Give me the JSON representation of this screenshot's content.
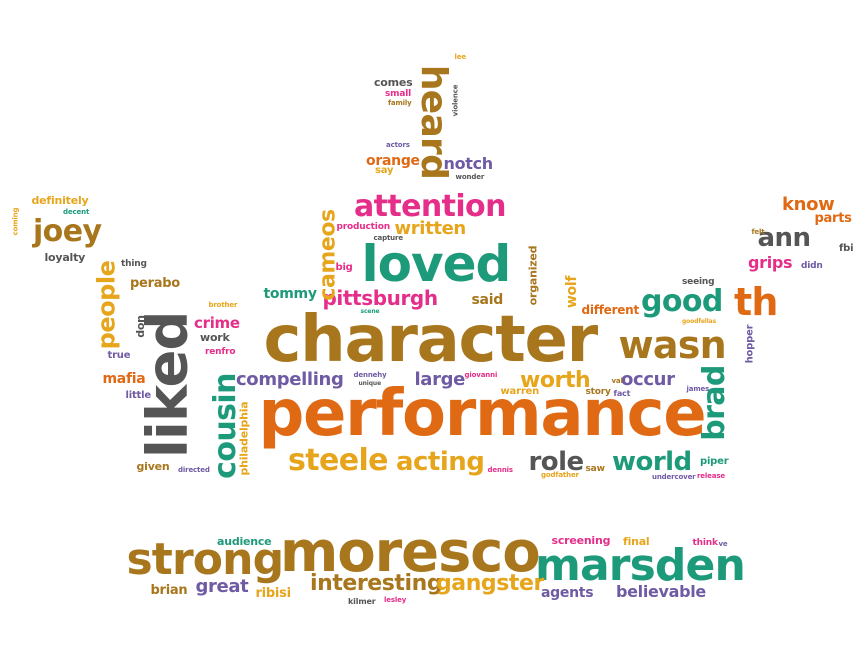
{
  "palette": {
    "green": "#1d9a7a",
    "orange": "#e06914",
    "brown": "#a8761c",
    "magenta": "#e52e8a",
    "gray": "#555555",
    "yellow": "#e7a51c",
    "purple": "#6f5aa4"
  },
  "words": [
    {
      "text": "character",
      "color": "brown"
    },
    {
      "text": "performance",
      "color": "orange"
    },
    {
      "text": "moresco",
      "color": "brown"
    },
    {
      "text": "marsden",
      "color": "green"
    },
    {
      "text": "strong",
      "color": "brown"
    },
    {
      "text": "liked",
      "color": "gray"
    },
    {
      "text": "loved",
      "color": "green"
    },
    {
      "text": "attention",
      "color": "magenta"
    },
    {
      "text": "wasn",
      "color": "brown"
    },
    {
      "text": "heard",
      "color": "brown"
    },
    {
      "text": "steele",
      "color": "yellow"
    },
    {
      "text": "acting",
      "color": "yellow"
    },
    {
      "text": "cousin",
      "color": "green"
    },
    {
      "text": "brad",
      "color": "green"
    },
    {
      "text": "good",
      "color": "green"
    },
    {
      "text": "th",
      "color": "orange"
    },
    {
      "text": "world",
      "color": "green"
    },
    {
      "text": "role",
      "color": "gray"
    },
    {
      "text": "worth",
      "color": "yellow"
    },
    {
      "text": "interesting",
      "color": "brown"
    },
    {
      "text": "gangster",
      "color": "yellow"
    },
    {
      "text": "joey",
      "color": "brown"
    },
    {
      "text": "people",
      "color": "yellow"
    },
    {
      "text": "pittsburgh",
      "color": "magenta"
    },
    {
      "text": "written",
      "color": "yellow"
    },
    {
      "text": "cameos",
      "color": "yellow"
    },
    {
      "text": "ann",
      "color": "gray"
    },
    {
      "text": "know",
      "color": "orange"
    },
    {
      "text": "great",
      "color": "purple"
    },
    {
      "text": "compelling",
      "color": "purple"
    },
    {
      "text": "large",
      "color": "purple"
    },
    {
      "text": "occur",
      "color": "purple"
    },
    {
      "text": "believable",
      "color": "purple"
    },
    {
      "text": "agents",
      "color": "purple"
    },
    {
      "text": "ribisi",
      "color": "yellow"
    },
    {
      "text": "brian",
      "color": "brown"
    },
    {
      "text": "audience",
      "color": "green"
    },
    {
      "text": "screening",
      "color": "magenta"
    },
    {
      "text": "final",
      "color": "yellow"
    },
    {
      "text": "grips",
      "color": "magenta"
    },
    {
      "text": "parts",
      "color": "orange"
    },
    {
      "text": "notch",
      "color": "purple"
    },
    {
      "text": "orange",
      "color": "orange"
    },
    {
      "text": "mafia",
      "color": "orange"
    },
    {
      "text": "crime",
      "color": "magenta"
    },
    {
      "text": "tommy",
      "color": "green"
    },
    {
      "text": "said",
      "color": "brown"
    },
    {
      "text": "wolf",
      "color": "yellow"
    },
    {
      "text": "organized",
      "color": "brown"
    },
    {
      "text": "different",
      "color": "orange"
    },
    {
      "text": "perabo",
      "color": "brown"
    },
    {
      "text": "philadelphia",
      "color": "yellow"
    },
    {
      "text": "definitely",
      "color": "yellow"
    },
    {
      "text": "loyalty",
      "color": "gray"
    },
    {
      "text": "thing",
      "color": "gray"
    },
    {
      "text": "don",
      "color": "gray"
    },
    {
      "text": "true",
      "color": "purple"
    },
    {
      "text": "little",
      "color": "purple"
    },
    {
      "text": "given",
      "color": "brown"
    },
    {
      "text": "work",
      "color": "gray"
    },
    {
      "text": "renfro",
      "color": "magenta"
    },
    {
      "text": "warren",
      "color": "yellow"
    },
    {
      "text": "story",
      "color": "brown"
    },
    {
      "text": "fact",
      "color": "purple"
    },
    {
      "text": "hopper",
      "color": "purple"
    },
    {
      "text": "piper",
      "color": "green"
    },
    {
      "text": "comes",
      "color": "gray"
    },
    {
      "text": "small",
      "color": "magenta"
    },
    {
      "text": "family",
      "color": "brown"
    },
    {
      "text": "violence",
      "color": "gray"
    },
    {
      "text": "lee",
      "color": "yellow"
    },
    {
      "text": "actors",
      "color": "purple"
    },
    {
      "text": "say",
      "color": "yellow"
    },
    {
      "text": "wonder",
      "color": "gray"
    },
    {
      "text": "production",
      "color": "magenta"
    },
    {
      "text": "capture",
      "color": "gray"
    },
    {
      "text": "big",
      "color": "magenta"
    },
    {
      "text": "scene",
      "color": "green"
    },
    {
      "text": "seeing",
      "color": "gray"
    },
    {
      "text": "felt",
      "color": "brown"
    },
    {
      "text": "didn",
      "color": "purple"
    },
    {
      "text": "fbi",
      "color": "gray"
    },
    {
      "text": "coming",
      "color": "yellow"
    },
    {
      "text": "decent",
      "color": "green"
    },
    {
      "text": "brother",
      "color": "yellow"
    },
    {
      "text": "goodfellas",
      "color": "yellow"
    },
    {
      "text": "james",
      "color": "purple"
    },
    {
      "text": "val",
      "color": "brown"
    },
    {
      "text": "giovanni",
      "color": "magenta"
    },
    {
      "text": "dennehy",
      "color": "purple"
    },
    {
      "text": "unique",
      "color": "gray"
    },
    {
      "text": "dennis",
      "color": "magenta"
    },
    {
      "text": "saw",
      "color": "brown"
    },
    {
      "text": "godfather",
      "color": "yellow"
    },
    {
      "text": "undercover",
      "color": "purple"
    },
    {
      "text": "release",
      "color": "magenta"
    },
    {
      "text": "directed",
      "color": "purple"
    },
    {
      "text": "kilmer",
      "color": "gray"
    },
    {
      "text": "lesley",
      "color": "magenta"
    },
    {
      "text": "think",
      "color": "magenta"
    },
    {
      "text": "ve",
      "color": "purple"
    }
  ]
}
